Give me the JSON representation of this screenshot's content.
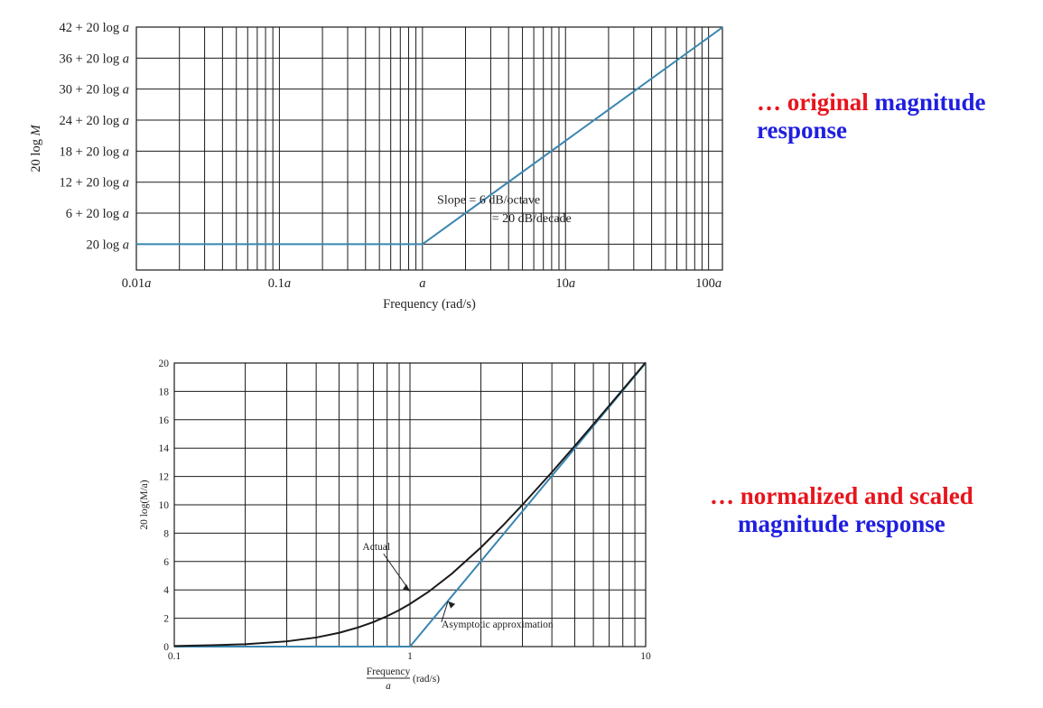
{
  "captions": {
    "top": {
      "dots": "…",
      "word1": "original",
      "word2": "magnitude",
      "line2": "response"
    },
    "bottom": {
      "dots": "…",
      "word1": "normalized and scaled",
      "line2": "magnitude response"
    }
  },
  "colors": {
    "grid": "#1a1a1a",
    "asymptote": "#3a86b0",
    "actual": "#1a1a1a",
    "caption_red": "#e8141c",
    "caption_blue": "#1f1fe0"
  },
  "chart_data": [
    {
      "type": "line",
      "xscale": "log",
      "xlim": [
        0.01,
        125
      ],
      "ylim": [
        -5,
        42
      ],
      "xlabel": "Frequency (rad/s)",
      "ylabel_prefix": "20 log ",
      "ylabel_var": "M",
      "x_tick_labels": [
        {
          "x": 0.01,
          "pre": "0.01",
          "var": "a"
        },
        {
          "x": 0.1,
          "pre": "0.1",
          "var": "a"
        },
        {
          "x": 1,
          "pre": "",
          "var": "a"
        },
        {
          "x": 10,
          "pre": "10",
          "var": "a"
        },
        {
          "x": 100,
          "pre": "100",
          "var": "a"
        }
      ],
      "y_tick_labels": [
        {
          "y": 42,
          "pre": "42 + 20 log ",
          "var": "a"
        },
        {
          "y": 36,
          "pre": "36 + 20 log ",
          "var": "a"
        },
        {
          "y": 30,
          "pre": "30 + 20 log ",
          "var": "a"
        },
        {
          "y": 24,
          "pre": "24 + 20 log ",
          "var": "a"
        },
        {
          "y": 18,
          "pre": "18 + 20 log ",
          "var": "a"
        },
        {
          "y": 12,
          "pre": "12 + 20 log ",
          "var": "a"
        },
        {
          "y": 6,
          "pre": "6 + 20 log ",
          "var": "a"
        },
        {
          "y": 0,
          "pre": "20 log ",
          "var": "a"
        }
      ],
      "series": [
        {
          "x": [
            0.01,
            1,
            125
          ],
          "y": [
            0,
            0,
            41.94
          ]
        }
      ],
      "annotations": [
        {
          "text": "Slope =    6 dB/octave",
          "x": 2.9,
          "y": 7.8
        },
        {
          "text": "= 20 dB/decade",
          "x": 5.8,
          "y": 4.3
        }
      ],
      "grid": true
    },
    {
      "type": "line",
      "xscale": "log",
      "xlim": [
        0.1,
        10
      ],
      "ylim": [
        0,
        20
      ],
      "xlabel_num": "Frequency",
      "xlabel_den": "a",
      "xlabel_unit": "(rad/s)",
      "ylabel": "20 log(M/a)",
      "x_tick_labels": [
        {
          "x": 0.1,
          "label": "0.1"
        },
        {
          "x": 1,
          "label": "1"
        },
        {
          "x": 10,
          "label": "10"
        }
      ],
      "y_ticks": [
        0,
        2,
        4,
        6,
        8,
        10,
        12,
        14,
        16,
        18,
        20
      ],
      "series": [
        {
          "x": [
            0.1,
            1,
            10
          ],
          "y": [
            0,
            0,
            20
          ]
        },
        {
          "x": [
            0.1,
            0.15,
            0.2,
            0.3,
            0.4,
            0.5,
            0.6,
            0.7,
            0.8,
            0.9,
            1,
            1.2,
            1.5,
            2,
            2.5,
            3,
            4,
            5,
            6,
            7,
            8,
            10
          ],
          "y": [
            0.04,
            0.1,
            0.17,
            0.37,
            0.64,
            0.97,
            1.34,
            1.73,
            2.15,
            2.57,
            3.01,
            3.87,
            5.12,
            6.99,
            8.6,
            10.0,
            12.3,
            14.15,
            15.68,
            16.99,
            18.13,
            20.04
          ]
        }
      ],
      "annotations": [
        {
          "text": "Actual",
          "x": 0.72,
          "y": 6.8
        },
        {
          "text": "Asymptotic approximation",
          "x": 2.35,
          "y": 1.35
        }
      ],
      "grid": true
    }
  ]
}
